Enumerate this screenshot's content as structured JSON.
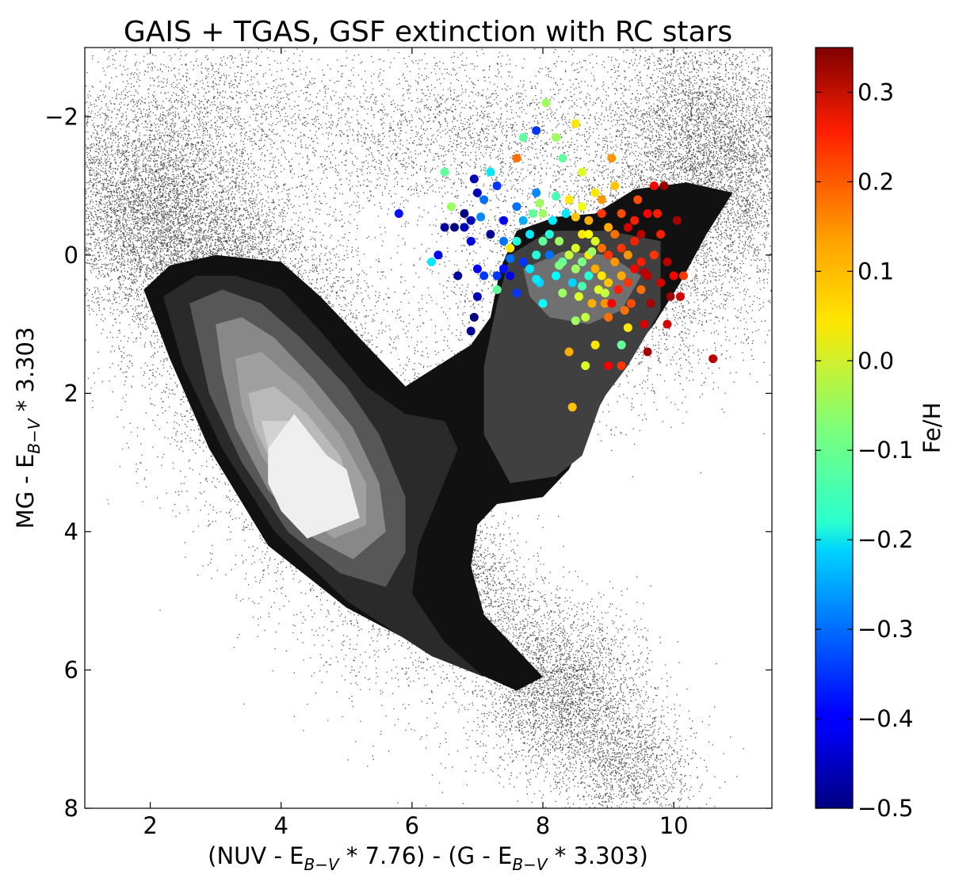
{
  "chart_data": {
    "type": "scatter",
    "title": "GAIS + TGAS, GSF extinction with RC stars",
    "xlabel": {
      "parts": [
        "(NUV - E",
        "B−V",
        " * 7.76) - (G - E",
        "B−V",
        " * 3.303)"
      ]
    },
    "ylabel": {
      "parts": [
        "MG - E",
        "B−V",
        " * 3.303"
      ]
    },
    "xlim": [
      1,
      11.5
    ],
    "ylim": [
      8,
      -3
    ],
    "y_inverted": true,
    "xticks": [
      2,
      4,
      6,
      8,
      10
    ],
    "yticks": [
      -2,
      0,
      2,
      4,
      6,
      8
    ],
    "ytick_labels": [
      "−2",
      "0",
      "2",
      "4",
      "6",
      "8"
    ],
    "grid": false,
    "colorbar": {
      "label": "Fe/H",
      "range": [
        -0.5,
        0.35
      ],
      "ticks": [
        0.3,
        0.2,
        0.1,
        0.0,
        -0.1,
        -0.2,
        -0.3,
        -0.4,
        -0.5
      ],
      "tick_labels": [
        "0.3",
        "0.2",
        "0.1",
        "0.0",
        "−0.1",
        "−0.2",
        "−0.3",
        "−0.4",
        "−0.5"
      ],
      "colormap": "jet"
    },
    "density_layer": {
      "kind": "filled-contour",
      "fill_colors": [
        "#111111",
        "#2a2a2a",
        "#404040",
        "#575757",
        "#707070",
        "#888888",
        "#a0a0a0",
        "#b9b9b9",
        "#d2d2d2",
        "#efefef"
      ],
      "levels": [
        {
          "polygon": [
            [
              1.9,
              0.5
            ],
            [
              2.3,
              0.15
            ],
            [
              3.0,
              0.0
            ],
            [
              4.0,
              0.1
            ],
            [
              4.6,
              0.6
            ],
            [
              5.3,
              1.3
            ],
            [
              5.9,
              1.9
            ],
            [
              6.4,
              1.6
            ],
            [
              6.9,
              1.3
            ],
            [
              7.2,
              0.9
            ],
            [
              7.35,
              0.2
            ],
            [
              7.6,
              -0.35
            ],
            [
              8.2,
              -0.55
            ],
            [
              8.8,
              -0.6
            ],
            [
              9.4,
              -0.95
            ],
            [
              10.2,
              -1.05
            ],
            [
              10.9,
              -0.9
            ],
            [
              10.5,
              -0.3
            ],
            [
              10.1,
              0.4
            ],
            [
              9.7,
              1.0
            ],
            [
              9.2,
              1.6
            ],
            [
              8.8,
              2.3
            ],
            [
              8.4,
              3.1
            ],
            [
              8.0,
              3.5
            ],
            [
              7.3,
              3.6
            ],
            [
              7.0,
              3.9
            ],
            [
              6.9,
              4.5
            ],
            [
              7.1,
              5.2
            ],
            [
              7.6,
              5.7
            ],
            [
              8.0,
              6.1
            ],
            [
              7.6,
              6.3
            ],
            [
              6.4,
              5.8
            ],
            [
              5.0,
              5.1
            ],
            [
              3.8,
              4.2
            ],
            [
              2.9,
              2.8
            ],
            [
              2.3,
              1.5
            ]
          ]
        },
        {
          "polygon": [
            [
              2.2,
              0.6
            ],
            [
              2.7,
              0.3
            ],
            [
              3.3,
              0.3
            ],
            [
              4.0,
              0.5
            ],
            [
              4.6,
              1.1
            ],
            [
              5.3,
              1.9
            ],
            [
              5.9,
              2.3
            ],
            [
              6.5,
              2.4
            ],
            [
              6.7,
              2.8
            ],
            [
              6.4,
              3.5
            ],
            [
              6.1,
              4.2
            ],
            [
              6.0,
              4.9
            ],
            [
              6.5,
              5.6
            ],
            [
              7.1,
              6.1
            ],
            [
              6.3,
              5.8
            ],
            [
              5.0,
              5.0
            ],
            [
              3.9,
              4.0
            ],
            [
              3.1,
              2.8
            ],
            [
              2.5,
              1.6
            ]
          ]
        },
        {
          "polygon": [
            [
              7.5,
              0.0
            ],
            [
              8.1,
              -0.35
            ],
            [
              9.0,
              -0.35
            ],
            [
              9.8,
              -0.2
            ],
            [
              9.8,
              0.8
            ],
            [
              9.3,
              1.6
            ],
            [
              8.9,
              2.1
            ],
            [
              8.6,
              2.9
            ],
            [
              8.2,
              3.2
            ],
            [
              7.5,
              3.3
            ],
            [
              7.1,
              2.6
            ],
            [
              7.1,
              1.6
            ],
            [
              7.3,
              0.7
            ]
          ]
        },
        {
          "polygon": [
            [
              2.6,
              0.7
            ],
            [
              3.1,
              0.5
            ],
            [
              3.7,
              0.7
            ],
            [
              4.3,
              1.2
            ],
            [
              5.0,
              1.9
            ],
            [
              5.5,
              2.6
            ],
            [
              5.9,
              3.5
            ],
            [
              5.9,
              4.3
            ],
            [
              5.6,
              4.8
            ],
            [
              4.9,
              4.6
            ],
            [
              4.1,
              4.0
            ],
            [
              3.4,
              3.0
            ],
            [
              2.9,
              2.0
            ]
          ]
        },
        {
          "polygon": [
            [
              7.7,
              0.2
            ],
            [
              8.3,
              -0.05
            ],
            [
              9.0,
              0.0
            ],
            [
              9.5,
              0.3
            ],
            [
              9.2,
              0.8
            ],
            [
              8.7,
              1.0
            ],
            [
              8.1,
              0.9
            ],
            [
              7.8,
              0.6
            ]
          ]
        },
        {
          "polygon": [
            [
              3.0,
              1.0
            ],
            [
              3.4,
              0.9
            ],
            [
              3.9,
              1.2
            ],
            [
              4.5,
              1.8
            ],
            [
              5.1,
              2.5
            ],
            [
              5.5,
              3.3
            ],
            [
              5.6,
              4.0
            ],
            [
              5.1,
              4.4
            ],
            [
              4.5,
              4.1
            ],
            [
              3.8,
              3.4
            ],
            [
              3.3,
              2.5
            ],
            [
              3.1,
              1.7
            ]
          ]
        },
        {
          "polygon": [
            [
              3.3,
              1.5
            ],
            [
              3.7,
              1.4
            ],
            [
              4.3,
              1.9
            ],
            [
              4.9,
              2.6
            ],
            [
              5.3,
              3.3
            ],
            [
              5.3,
              3.9
            ],
            [
              4.8,
              4.1
            ],
            [
              4.2,
              3.6
            ],
            [
              3.7,
              2.9
            ],
            [
              3.4,
              2.2
            ]
          ]
        },
        {
          "polygon": [
            [
              3.5,
              2.0
            ],
            [
              3.9,
              1.9
            ],
            [
              4.4,
              2.3
            ],
            [
              4.9,
              2.9
            ],
            [
              5.1,
              3.5
            ],
            [
              4.8,
              3.8
            ],
            [
              4.3,
              3.5
            ],
            [
              3.8,
              2.9
            ],
            [
              3.6,
              2.5
            ]
          ]
        },
        {
          "polygon": [
            [
              3.7,
              2.4
            ],
            [
              4.1,
              2.4
            ],
            [
              4.5,
              2.7
            ],
            [
              4.9,
              3.2
            ],
            [
              4.9,
              3.6
            ],
            [
              4.4,
              3.5
            ],
            [
              4.0,
              3.1
            ],
            [
              3.8,
              2.8
            ]
          ]
        },
        {
          "polygon": [
            [
              3.8,
              2.8
            ],
            [
              4.2,
              2.3
            ],
            [
              4.7,
              2.9
            ],
            [
              5.0,
              3.1
            ],
            [
              5.2,
              3.8
            ],
            [
              4.4,
              4.1
            ],
            [
              4.0,
              3.7
            ],
            [
              3.8,
              3.3
            ]
          ]
        }
      ]
    },
    "rc_stars": [
      [
        5.8,
        -0.6,
        -0.38
      ],
      [
        6.5,
        -1.2,
        -0.1
      ],
      [
        6.3,
        0.1,
        -0.2
      ],
      [
        6.4,
        0.0,
        -0.4
      ],
      [
        6.5,
        -0.4,
        -0.48
      ],
      [
        6.6,
        -0.7,
        -0.05
      ],
      [
        6.65,
        -0.4,
        -0.5
      ],
      [
        6.7,
        0.3,
        -0.47
      ],
      [
        6.8,
        -0.6,
        -0.5
      ],
      [
        6.8,
        -0.4,
        -0.45
      ],
      [
        6.9,
        -0.5,
        -0.45
      ],
      [
        6.9,
        -0.2,
        -0.42
      ],
      [
        6.95,
        -1.1,
        -0.45
      ],
      [
        7.0,
        -0.9,
        -0.45
      ],
      [
        7.0,
        0.2,
        -0.4
      ],
      [
        7.05,
        -0.55,
        -0.28
      ],
      [
        7.1,
        -0.8,
        -0.3
      ],
      [
        6.9,
        1.1,
        -0.48
      ],
      [
        7.0,
        0.6,
        -0.45
      ],
      [
        6.95,
        0.9,
        -0.5
      ],
      [
        7.1,
        0.3,
        -0.35
      ],
      [
        7.2,
        -0.3,
        -0.48
      ],
      [
        7.2,
        -1.2,
        -0.2
      ],
      [
        7.3,
        -1.0,
        -0.35
      ],
      [
        7.3,
        0.5,
        -0.1
      ],
      [
        7.4,
        -0.5,
        -0.4
      ],
      [
        7.4,
        -0.2,
        -0.3
      ],
      [
        7.4,
        0.2,
        -0.38
      ],
      [
        7.5,
        -0.1,
        0.05
      ],
      [
        7.5,
        0.3,
        -0.42
      ],
      [
        7.6,
        -1.4,
        0.15
      ],
      [
        7.6,
        -0.7,
        -0.3
      ],
      [
        7.6,
        -0.2,
        -0.15
      ],
      [
        7.7,
        -0.5,
        -0.25
      ],
      [
        7.7,
        0.1,
        -0.35
      ],
      [
        7.7,
        -1.7,
        -0.1
      ],
      [
        7.8,
        -0.3,
        -0.2
      ],
      [
        7.8,
        0.2,
        -0.2
      ],
      [
        7.85,
        -0.6,
        -0.1
      ],
      [
        7.9,
        -1.8,
        -0.35
      ],
      [
        7.9,
        -0.9,
        -0.28
      ],
      [
        7.9,
        0.0,
        -0.15
      ],
      [
        7.95,
        0.4,
        -0.22
      ],
      [
        8.0,
        -0.6,
        -0.05
      ],
      [
        8.0,
        -0.2,
        -0.1
      ],
      [
        8.05,
        -2.2,
        -0.05
      ],
      [
        8.1,
        0.0,
        -0.3
      ],
      [
        8.1,
        -0.3,
        -0.15
      ],
      [
        8.15,
        -0.5,
        -0.2
      ],
      [
        8.2,
        0.3,
        -0.18
      ],
      [
        8.2,
        -1.7,
        -0.05
      ],
      [
        8.3,
        -1.4,
        -0.1
      ],
      [
        8.25,
        -0.2,
        -0.05
      ],
      [
        8.3,
        0.1,
        -0.1
      ],
      [
        8.35,
        -0.6,
        -0.2
      ],
      [
        8.4,
        -0.8,
        0.05
      ],
      [
        8.4,
        0.0,
        -0.02
      ],
      [
        8.45,
        0.4,
        -0.22
      ],
      [
        8.5,
        -1.9,
        0.05
      ],
      [
        8.5,
        -0.1,
        0.0
      ],
      [
        8.5,
        0.2,
        -0.05
      ],
      [
        8.55,
        0.6,
        0.0
      ],
      [
        8.6,
        -0.7,
        0.02
      ],
      [
        8.6,
        -0.3,
        0.05
      ],
      [
        8.6,
        0.1,
        -0.08
      ],
      [
        8.65,
        0.9,
        -0.02
      ],
      [
        8.7,
        -0.5,
        0.1
      ],
      [
        8.7,
        0.0,
        0.05
      ],
      [
        8.7,
        0.3,
        -0.15
      ],
      [
        8.75,
        0.7,
        0.1
      ],
      [
        8.8,
        -0.9,
        0.05
      ],
      [
        8.8,
        -0.2,
        0.0
      ],
      [
        8.8,
        0.2,
        0.1
      ],
      [
        8.85,
        0.5,
        0.0
      ],
      [
        8.9,
        -0.6,
        0.2
      ],
      [
        8.9,
        -0.1,
        0.15
      ],
      [
        8.9,
        0.3,
        0.05
      ],
      [
        8.95,
        0.7,
        0.12
      ],
      [
        9.0,
        -0.4,
        0.1
      ],
      [
        9.0,
        0.0,
        0.2
      ],
      [
        9.0,
        0.4,
        0.08
      ],
      [
        9.05,
        0.7,
        0.25
      ],
      [
        9.1,
        -1.0,
        0.08
      ],
      [
        9.1,
        -0.3,
        0.15
      ],
      [
        9.1,
        0.1,
        0.12
      ],
      [
        9.15,
        0.5,
        0.22
      ],
      [
        9.2,
        -0.6,
        0.18
      ],
      [
        9.2,
        -0.1,
        0.2
      ],
      [
        9.2,
        0.3,
        0.1
      ],
      [
        9.25,
        0.8,
        0.15
      ],
      [
        9.3,
        -0.4,
        0.28
      ],
      [
        9.3,
        0.0,
        0.12
      ],
      [
        9.3,
        0.4,
        0.2
      ],
      [
        9.35,
        0.7,
        0.18
      ],
      [
        9.4,
        -0.2,
        0.22
      ],
      [
        9.4,
        0.2,
        0.25
      ],
      [
        9.45,
        -0.8,
        0.18
      ],
      [
        9.5,
        -0.3,
        0.3
      ],
      [
        9.5,
        0.1,
        0.22
      ],
      [
        9.5,
        0.5,
        0.15
      ],
      [
        9.55,
        1.0,
        0.28
      ],
      [
        9.6,
        -0.6,
        0.25
      ],
      [
        9.6,
        0.3,
        0.3
      ],
      [
        9.65,
        0.7,
        0.32
      ],
      [
        9.7,
        0.0,
        0.2
      ],
      [
        9.7,
        -1.0,
        0.25
      ],
      [
        9.8,
        -0.3,
        0.22
      ],
      [
        9.8,
        0.4,
        0.28
      ],
      [
        9.85,
        -1.0,
        0.33
      ],
      [
        9.9,
        0.1,
        0.3
      ],
      [
        9.95,
        0.6,
        0.32
      ],
      [
        10.0,
        0.3,
        0.25
      ],
      [
        10.05,
        -0.5,
        0.32
      ],
      [
        10.1,
        0.6,
        0.28
      ],
      [
        10.15,
        0.3,
        0.2
      ],
      [
        9.6,
        1.4,
        0.32
      ],
      [
        9.2,
        1.6,
        0.2
      ],
      [
        9.0,
        1.6,
        0.25
      ],
      [
        8.65,
        1.6,
        0.0
      ],
      [
        8.4,
        1.4,
        0.1
      ],
      [
        8.45,
        2.2,
        0.08
      ],
      [
        9.2,
        1.3,
        -0.1
      ],
      [
        8.8,
        1.3,
        0.05
      ],
      [
        10.6,
        1.5,
        0.3
      ],
      [
        9.9,
        1.0,
        0.28
      ],
      [
        8.5,
        0.95,
        -0.05
      ],
      [
        8.6,
        0.45,
        -0.12
      ],
      [
        8.3,
        0.55,
        -0.05
      ],
      [
        7.9,
        0.35,
        -0.2
      ],
      [
        7.6,
        0.55,
        -0.35
      ],
      [
        7.3,
        0.3,
        -0.35
      ],
      [
        7.5,
        0.05,
        -0.3
      ],
      [
        8.0,
        0.7,
        -0.18
      ],
      [
        7.95,
        -0.75,
        -0.05
      ],
      [
        8.2,
        -0.85,
        -0.12
      ],
      [
        8.5,
        -0.55,
        0.08
      ],
      [
        8.9,
        -0.8,
        0.12
      ],
      [
        9.4,
        -0.5,
        0.22
      ],
      [
        8.7,
        -0.3,
        0.03
      ],
      [
        9.0,
        0.9,
        0.15
      ],
      [
        9.3,
        1.05,
        0.05
      ],
      [
        8.95,
        0.55,
        -0.02
      ],
      [
        8.25,
        0.15,
        -0.08
      ],
      [
        8.75,
        -0.05,
        -0.05
      ],
      [
        9.55,
        0.25,
        0.3
      ],
      [
        9.75,
        -0.6,
        0.22
      ],
      [
        8.6,
        -1.2,
        0.0
      ],
      [
        9.05,
        -1.4,
        0.12
      ]
    ]
  }
}
